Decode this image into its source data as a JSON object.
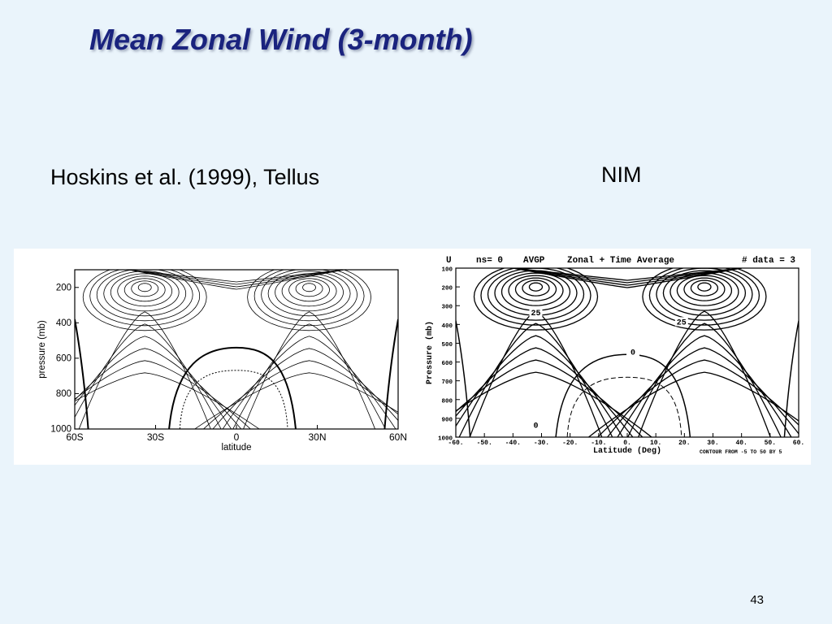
{
  "slide": {
    "title": "Mean Zonal Wind (3-month)",
    "left_caption": "Hoskins et al. (1999), Tellus",
    "right_caption": "NIM",
    "page_number": "43"
  },
  "chart_data": [
    {
      "type": "contour",
      "title": "",
      "xlabel": "latitude",
      "ylabel": "pressure (mb)",
      "x_ticks": [
        "60S",
        "30S",
        "0",
        "30N",
        "60N"
      ],
      "x_tick_values": [
        -60,
        -30,
        0,
        30,
        60
      ],
      "y_ticks": [
        "200",
        "400",
        "600",
        "800",
        "1000"
      ],
      "y_tick_values": [
        200,
        400,
        600,
        800,
        1000
      ],
      "xlim": [
        -60,
        60
      ],
      "ylim": [
        1000,
        100
      ],
      "jet_cores": [
        {
          "lat": -34,
          "p": 200
        },
        {
          "lat": 27,
          "p": 200
        }
      ],
      "zero_contour": "bold",
      "negative_contours": "dotted"
    },
    {
      "type": "contour",
      "header": {
        "var": "U",
        "ns": "ns= 0",
        "avg": "AVGP",
        "desc": "Zonal + Time Average",
        "count": "# data =  3"
      },
      "xlabel": "Latitude (Deg)",
      "ylabel": "Pressure (mb)",
      "x_ticks": [
        "-60.",
        "-50.",
        "-40.",
        "-30.",
        "-20.",
        "-10.",
        "0.",
        "10.",
        "20.",
        "30.",
        "40.",
        "50.",
        "60."
      ],
      "x_tick_values": [
        -60,
        -50,
        -40,
        -30,
        -20,
        -10,
        0,
        10,
        20,
        30,
        40,
        50,
        60
      ],
      "y_ticks": [
        "100",
        "200",
        "300",
        "400",
        "500",
        "600",
        "700",
        "800",
        "900",
        "1000"
      ],
      "y_tick_values": [
        100,
        200,
        300,
        400,
        500,
        600,
        700,
        800,
        900,
        1000
      ],
      "xlim": [
        -60,
        60
      ],
      "ylim": [
        1000,
        100
      ],
      "contour_labels": [
        {
          "text": "25",
          "lat": -32,
          "p": 350
        },
        {
          "text": "25",
          "lat": 19,
          "p": 400
        },
        {
          "text": "0",
          "lat": 2,
          "p": 560
        },
        {
          "text": "0",
          "lat": -32,
          "p": 950
        }
      ],
      "footer": "CONTOUR FROM -5 TO 50 BY 5",
      "jet_cores": [
        {
          "lat": -32,
          "p": 200
        },
        {
          "lat": 27,
          "p": 200
        }
      ]
    }
  ]
}
